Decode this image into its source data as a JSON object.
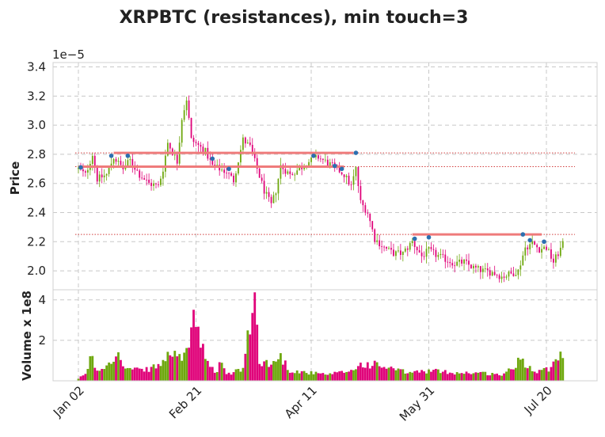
{
  "title": "XRPBTC (resistances), min touch=3",
  "colors": {
    "up": "#6fa80f",
    "down": "#e0047a",
    "resistance": "#ef7b7b",
    "touch_dot": "#2c6fb0",
    "dotted_line": "#d24040",
    "grid": "#c8c8c8"
  },
  "chart_data": {
    "type": "candlestick",
    "price_panel": {
      "ylabel": "Price",
      "scale_label": "1e−5",
      "ylim": [
        1.87,
        3.43
      ],
      "yticks": [
        2.0,
        2.2,
        2.4,
        2.6,
        2.8,
        3.0,
        3.2,
        3.4
      ],
      "ytick_labels": [
        "2.0",
        "2.2",
        "2.4",
        "2.6",
        "2.8",
        "3.0",
        "3.2",
        "3.4"
      ]
    },
    "volume_panel": {
      "ylabel": "Volume x 1e8",
      "ylim": [
        0,
        4.5
      ],
      "yticks": [
        2,
        4
      ],
      "ytick_labels": [
        "2",
        "4"
      ]
    },
    "x_axis": {
      "n_days": 207,
      "ticks": [
        {
          "day": 0,
          "label": "Jan 02"
        },
        {
          "day": 50,
          "label": "Feb 21"
        },
        {
          "day": 99,
          "label": "Apr 11"
        },
        {
          "day": 149,
          "label": "May 31"
        },
        {
          "day": 199,
          "label": "Jul 20"
        }
      ]
    },
    "resistances": [
      {
        "price": 2.81,
        "start_day": 15,
        "end_day": 117
      },
      {
        "price": 2.715,
        "start_day": 0,
        "end_day": 113
      },
      {
        "price": 2.25,
        "start_day": 142,
        "end_day": 197
      }
    ],
    "reference_lines": [
      2.81,
      2.715,
      2.25
    ],
    "touch_points": [
      {
        "day": 1,
        "price": 2.71
      },
      {
        "day": 14,
        "price": 2.79
      },
      {
        "day": 21,
        "price": 2.79
      },
      {
        "day": 57,
        "price": 2.77
      },
      {
        "day": 64,
        "price": 2.7
      },
      {
        "day": 100,
        "price": 2.79
      },
      {
        "day": 109,
        "price": 2.72
      },
      {
        "day": 112,
        "price": 2.7
      },
      {
        "day": 118,
        "price": 2.81
      },
      {
        "day": 143,
        "price": 2.22
      },
      {
        "day": 149,
        "price": 2.23
      },
      {
        "day": 189,
        "price": 2.25
      },
      {
        "day": 192,
        "price": 2.21
      },
      {
        "day": 198,
        "price": 2.2
      }
    ],
    "price_anchors": [
      [
        0,
        2.7
      ],
      [
        3,
        2.66
      ],
      [
        6,
        2.8
      ],
      [
        8,
        2.63
      ],
      [
        12,
        2.66
      ],
      [
        15,
        2.78
      ],
      [
        19,
        2.7
      ],
      [
        22,
        2.76
      ],
      [
        26,
        2.66
      ],
      [
        30,
        2.6
      ],
      [
        34,
        2.58
      ],
      [
        36,
        2.7
      ],
      [
        38,
        2.88
      ],
      [
        42,
        2.75
      ],
      [
        44,
        3.05
      ],
      [
        46,
        3.18
      ],
      [
        48,
        2.9
      ],
      [
        51,
        2.86
      ],
      [
        54,
        2.82
      ],
      [
        57,
        2.72
      ],
      [
        60,
        2.7
      ],
      [
        63,
        2.68
      ],
      [
        66,
        2.62
      ],
      [
        70,
        2.9
      ],
      [
        73,
        2.85
      ],
      [
        76,
        2.7
      ],
      [
        79,
        2.55
      ],
      [
        82,
        2.45
      ],
      [
        84,
        2.55
      ],
      [
        86,
        2.72
      ],
      [
        90,
        2.66
      ],
      [
        94,
        2.7
      ],
      [
        98,
        2.75
      ],
      [
        102,
        2.78
      ],
      [
        106,
        2.74
      ],
      [
        110,
        2.7
      ],
      [
        113,
        2.66
      ],
      [
        116,
        2.58
      ],
      [
        118,
        2.7
      ],
      [
        120,
        2.47
      ],
      [
        123,
        2.4
      ],
      [
        126,
        2.22
      ],
      [
        130,
        2.16
      ],
      [
        134,
        2.12
      ],
      [
        138,
        2.12
      ],
      [
        142,
        2.2
      ],
      [
        146,
        2.1
      ],
      [
        149,
        2.14
      ],
      [
        152,
        2.11
      ],
      [
        156,
        2.08
      ],
      [
        160,
        2.05
      ],
      [
        164,
        2.06
      ],
      [
        168,
        2.02
      ],
      [
        172,
        2.0
      ],
      [
        176,
        1.99
      ],
      [
        180,
        1.96
      ],
      [
        184,
        1.98
      ],
      [
        187,
        2.0
      ],
      [
        190,
        2.16
      ],
      [
        193,
        2.19
      ],
      [
        196,
        2.15
      ],
      [
        199,
        2.16
      ],
      [
        202,
        2.06
      ],
      [
        206,
        2.18
      ]
    ],
    "volume_anchors": [
      [
        0,
        0.08
      ],
      [
        4,
        0.5
      ],
      [
        5,
        1.3
      ],
      [
        8,
        0.5
      ],
      [
        12,
        0.8
      ],
      [
        16,
        1.4
      ],
      [
        20,
        0.6
      ],
      [
        28,
        0.5
      ],
      [
        35,
        0.8
      ],
      [
        38,
        1.2
      ],
      [
        41,
        1.6
      ],
      [
        44,
        0.8
      ],
      [
        47,
        2.0
      ],
      [
        49,
        3.3
      ],
      [
        51,
        2.2
      ],
      [
        55,
        0.8
      ],
      [
        59,
        0.4
      ],
      [
        61,
        1.1
      ],
      [
        63,
        0.3
      ],
      [
        70,
        0.6
      ],
      [
        74,
        3.4
      ],
      [
        75,
        4.0
      ],
      [
        77,
        1.0
      ],
      [
        82,
        0.8
      ],
      [
        86,
        1.2
      ],
      [
        90,
        0.5
      ],
      [
        98,
        0.4
      ],
      [
        106,
        0.3
      ],
      [
        116,
        0.5
      ],
      [
        120,
        0.8
      ],
      [
        126,
        0.8
      ],
      [
        133,
        0.6
      ],
      [
        140,
        0.4
      ],
      [
        150,
        0.5
      ],
      [
        160,
        0.4
      ],
      [
        170,
        0.4
      ],
      [
        180,
        0.3
      ],
      [
        186,
        0.7
      ],
      [
        188,
        1.3
      ],
      [
        190,
        0.8
      ],
      [
        195,
        0.5
      ],
      [
        200,
        0.6
      ],
      [
        203,
        1.2
      ],
      [
        205,
        1.4
      ],
      [
        206,
        1.0
      ]
    ]
  }
}
